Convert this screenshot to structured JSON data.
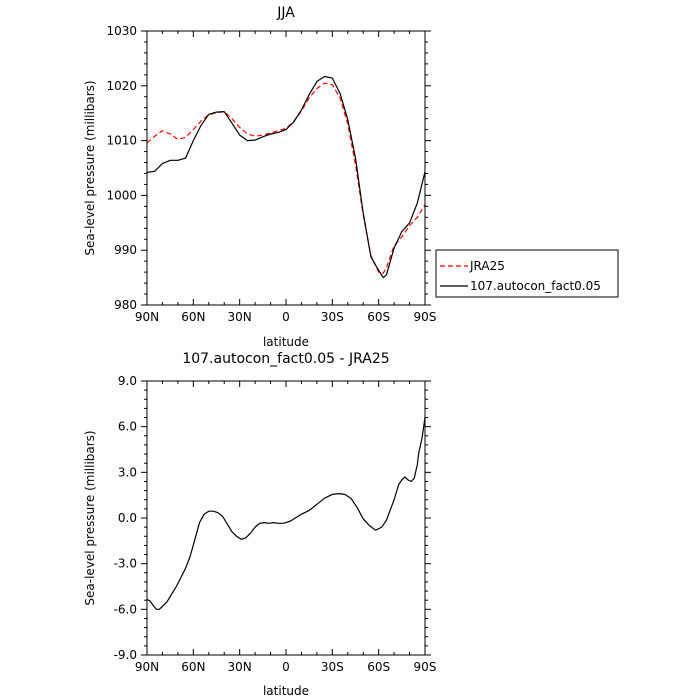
{
  "chart_data": [
    {
      "type": "line",
      "title": "JJA",
      "xlabel": "latitude",
      "ylabel": "Sea-level pressure (millibars)",
      "xlim": [
        90,
        -90
      ],
      "ylim": [
        980,
        1030
      ],
      "x_tick_values": [
        90,
        60,
        30,
        0,
        -30,
        -60,
        -90
      ],
      "x_tick_labels": [
        "90N",
        "60N",
        "30N",
        "0",
        "30S",
        "60S",
        "90S"
      ],
      "y_tick_values": [
        980,
        990,
        1000,
        1010,
        1020,
        1030
      ],
      "y_tick_labels": [
        "980",
        "990",
        "1000",
        "1010",
        "1020",
        "1030"
      ],
      "legend_placement": "right",
      "grid": false,
      "x": [
        90,
        85,
        80,
        75,
        70,
        65,
        60,
        55,
        50,
        45,
        40,
        35,
        30,
        25,
        20,
        15,
        10,
        5,
        0,
        -5,
        -10,
        -15,
        -20,
        -25,
        -30,
        -35,
        -40,
        -45,
        -50,
        -55,
        -60,
        -63,
        -65,
        -70,
        -75,
        -80,
        -85,
        -90
      ],
      "series": [
        {
          "name": "JRA25",
          "color": "#ff0000",
          "dash": "dashed",
          "values": [
            1009.6,
            1010.8,
            1011.8,
            1011.2,
            1010.2,
            1010.6,
            1012.0,
            1013.6,
            1014.7,
            1015.1,
            1015.3,
            1014.0,
            1012.4,
            1011.2,
            1010.8,
            1011.0,
            1011.4,
            1011.8,
            1012.2,
            1013.5,
            1015.4,
            1017.8,
            1019.5,
            1020.5,
            1020.2,
            1017.8,
            1013.0,
            1005.6,
            996.4,
            989.0,
            986.0,
            985.8,
            986.8,
            990.8,
            992.4,
            994.5,
            996.0,
            998.3
          ]
        },
        {
          "name": "107.autocon_fact0.05",
          "color": "#000000",
          "dash": "solid",
          "values": [
            1004.2,
            1004.4,
            1005.8,
            1006.4,
            1006.4,
            1006.8,
            1010.0,
            1012.8,
            1014.8,
            1015.2,
            1015.3,
            1013.2,
            1011.0,
            1010.0,
            1010.1,
            1010.7,
            1011.2,
            1011.5,
            1012.0,
            1013.4,
            1015.6,
            1018.4,
            1020.8,
            1021.7,
            1021.4,
            1018.6,
            1013.8,
            1006.8,
            996.8,
            988.8,
            986.3,
            985.0,
            985.5,
            990.4,
            993.4,
            995.0,
            998.6,
            1004.3
          ]
        }
      ]
    },
    {
      "type": "line",
      "title": "107.autocon_fact0.05 - JRA25",
      "xlabel": "latitude",
      "ylabel": "Sea-level pressure (millibars)",
      "xlim": [
        90,
        -90
      ],
      "ylim": [
        -9,
        9
      ],
      "x_tick_values": [
        90,
        60,
        30,
        0,
        -30,
        -60,
        -90
      ],
      "x_tick_labels": [
        "90N",
        "60N",
        "30N",
        "0",
        "30S",
        "60S",
        "90S"
      ],
      "y_tick_values": [
        -9,
        -6,
        -3,
        0,
        3,
        6,
        9
      ],
      "y_tick_labels": [
        "-9.0",
        "-6.0",
        "-3.0",
        "0.0",
        "3.0",
        "6.0",
        "9.0"
      ],
      "grid": false,
      "x": [
        90,
        88,
        86,
        84,
        82,
        80,
        77,
        74,
        71,
        68,
        65,
        62,
        59,
        56,
        53,
        50,
        47,
        44,
        41,
        38,
        35,
        32,
        29,
        26,
        23,
        20,
        17,
        14,
        11,
        8,
        5,
        2,
        0,
        -3,
        -6,
        -10,
        -15,
        -20,
        -25,
        -30,
        -34,
        -38,
        -42,
        -46,
        -50,
        -54,
        -58,
        -62,
        -65,
        -67,
        -70,
        -73,
        -75,
        -77,
        -79,
        -81,
        -83,
        -85,
        -86,
        -88,
        -90
      ],
      "series": [
        {
          "name": "",
          "color": "#000000",
          "dash": "solid",
          "values": [
            -5.35,
            -5.45,
            -5.75,
            -6.0,
            -6.0,
            -5.8,
            -5.5,
            -5.0,
            -4.5,
            -3.9,
            -3.3,
            -2.5,
            -1.4,
            -0.3,
            0.25,
            0.45,
            0.45,
            0.35,
            0.1,
            -0.4,
            -0.9,
            -1.2,
            -1.4,
            -1.3,
            -1.0,
            -0.6,
            -0.35,
            -0.3,
            -0.35,
            -0.3,
            -0.35,
            -0.35,
            -0.3,
            -0.2,
            0.0,
            0.25,
            0.5,
            0.9,
            1.3,
            1.55,
            1.6,
            1.55,
            1.3,
            0.7,
            -0.05,
            -0.5,
            -0.8,
            -0.6,
            -0.15,
            0.4,
            1.2,
            2.2,
            2.5,
            2.7,
            2.5,
            2.4,
            2.6,
            3.5,
            4.3,
            5.2,
            6.6
          ]
        }
      ]
    }
  ]
}
